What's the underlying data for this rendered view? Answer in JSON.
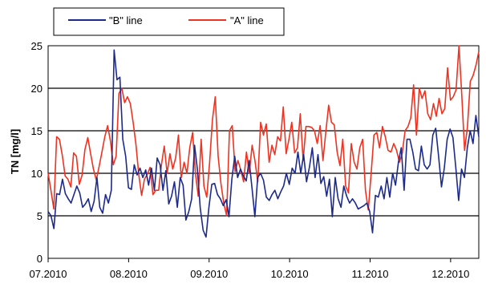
{
  "chart_data": {
    "type": "line",
    "title": "",
    "xlabel": "",
    "ylabel": "TN [mg/l]",
    "ylim": [
      0,
      25
    ],
    "yticks": [
      "0",
      "5",
      "10",
      "15",
      "20",
      "25"
    ],
    "xticks": [
      "07.2010",
      "08.2010",
      "09.2010",
      "10.2010",
      "11.2010",
      "12.2010"
    ],
    "grid": "horizontal",
    "legend": "top-left",
    "x_start": "07.2010",
    "x_end": "12.2010",
    "series": [
      {
        "name": "\"B\" line",
        "color": "#1c2a8c",
        "values": [
          5.5,
          5.0,
          3.5,
          7.6,
          7.5,
          9.3,
          7.6,
          7.0,
          6.5,
          7.5,
          8.5,
          7.7,
          6.0,
          6.4,
          7.0,
          5.5,
          6.7,
          9.5,
          6.0,
          5.3,
          7.5,
          6.5,
          8.0,
          24.5,
          21.0,
          21.3,
          14.0,
          12.0,
          8.3,
          8.1,
          11.0,
          9.8,
          10.6,
          9.5,
          10.4,
          8.6,
          10.6,
          8.0,
          11.8,
          11.0,
          8.0,
          10.3,
          6.4,
          7.3,
          9.0,
          6.0,
          9.5,
          8.6,
          4.5,
          5.5,
          7.0,
          13.3,
          10.4,
          5.9,
          3.3,
          2.5,
          6.0,
          8.7,
          8.8,
          7.5,
          7.0,
          6.2,
          6.9,
          4.9,
          9.3,
          12.0,
          9.5,
          10.5,
          9.7,
          9.1,
          11.5,
          8.3,
          4.9,
          9.5,
          10.0,
          9.2,
          7.2,
          6.8,
          7.5,
          8.0,
          7.0,
          7.8,
          8.5,
          10.0,
          8.7,
          10.6,
          10.0,
          12.5,
          10.0,
          12.2,
          9.0,
          10.7,
          13.0,
          9.5,
          12.2,
          8.8,
          9.6,
          7.3,
          9.3,
          4.9,
          9.5,
          7.0,
          6.0,
          8.5,
          7.3,
          6.5,
          7.0,
          6.5,
          5.8,
          6.0,
          6.2,
          6.5,
          5.5,
          3.0,
          7.4,
          7.2,
          8.5,
          7.0,
          9.5,
          7.2,
          10.0,
          8.6,
          11.3,
          13.0,
          8.0,
          14.0,
          14.0,
          12.5,
          10.5,
          10.3,
          13.2,
          11.0,
          10.5,
          11.0,
          14.5,
          15.3,
          12.0,
          8.4,
          10.6,
          14.0,
          15.2,
          14.2,
          10.6,
          6.8,
          10.5,
          9.5,
          13.0,
          15.0,
          13.5,
          16.8,
          14.3
        ]
      },
      {
        "name": "\"A\" line",
        "color": "#ee3322",
        "values": [
          10.0,
          8.0,
          5.8,
          14.3,
          14.0,
          12.1,
          9.7,
          9.3,
          8.4,
          12.4,
          12.0,
          8.7,
          9.8,
          12.8,
          14.2,
          12.3,
          10.5,
          9.2,
          10.8,
          12.5,
          14.3,
          15.6,
          13.8,
          11.0,
          12.0,
          19.4,
          20.0,
          18.3,
          19.0,
          18.2,
          16.0,
          13.4,
          9.8,
          7.4,
          9.3,
          9.9,
          10.7,
          7.5,
          8.0,
          8.0,
          11.0,
          13.2,
          10.0,
          12.3,
          10.5,
          11.8,
          14.5,
          9.5,
          11.3,
          10.0,
          13.0,
          14.8,
          10.0,
          7.3,
          14.0,
          8.5,
          7.2,
          11.3,
          16.3,
          19.0,
          12.0,
          8.8,
          6.5,
          5.0,
          15.0,
          15.6,
          10.2,
          11.5,
          10.4,
          9.0,
          12.5,
          10.0,
          13.3,
          11.5,
          9.0,
          16.0,
          14.5,
          15.8,
          11.3,
          13.3,
          12.2,
          14.3,
          13.8,
          17.8,
          12.3,
          14.0,
          16.0,
          12.4,
          13.0,
          17.0,
          11.5,
          15.5,
          15.5,
          15.4,
          15.0,
          13.5,
          15.6,
          11.5,
          14.8,
          18.0,
          16.0,
          15.7,
          12.5,
          10.9,
          14.0,
          8.5,
          7.7,
          13.5,
          11.3,
          10.5,
          13.0,
          14.0,
          8.0,
          5.7,
          10.0,
          14.5,
          14.8,
          13.0,
          15.5,
          14.3,
          12.7,
          12.5,
          13.5,
          12.7,
          11.3,
          12.4,
          15.0,
          15.5,
          16.5,
          20.4,
          14.5,
          20.0,
          18.8,
          19.7,
          17.0,
          16.3,
          18.2,
          16.7,
          18.8,
          17.0,
          17.6,
          22.4,
          18.6,
          19.0,
          19.8,
          25.0,
          19.2,
          12.7,
          15.5,
          20.8,
          21.5,
          22.7,
          24.3
        ]
      }
    ]
  }
}
